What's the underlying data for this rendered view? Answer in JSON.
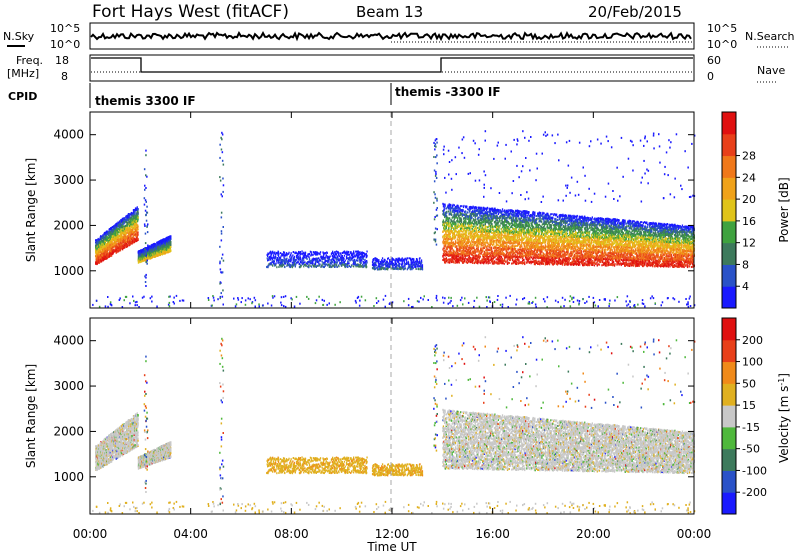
{
  "header": {
    "title": "Fort Hays West (fitACF)",
    "beam": "Beam 13",
    "date": "20/Feb/2015"
  },
  "summary_panel": {
    "nsky_label": "N.Sky",
    "nsky_ticks": [
      "10^5",
      "10^0"
    ],
    "nsearch_label": "N.Search",
    "nsearch_ticks": [
      "10^5",
      "10^0"
    ],
    "freq_label": "Freq.",
    "freq_unit": "[MHz]",
    "freq_ticks": [
      "18",
      "8"
    ],
    "nave_label": "Nave",
    "nave_ticks": [
      "60",
      "0"
    ],
    "cpid_label": "CPID",
    "cpid_segments": [
      {
        "label": "themis 3300 IF",
        "start_h": 0,
        "end_h": 12
      },
      {
        "label": "themis -3300 IF",
        "start_h": 12,
        "end_h": 24
      }
    ]
  },
  "axes": {
    "ylabel": "Slant Range [km]",
    "yticks": [
      "1000",
      "2000",
      "3000",
      "4000"
    ],
    "xlabel": "Time UT",
    "xticks": [
      "00:00",
      "04:00",
      "08:00",
      "12:00",
      "16:00",
      "20:00",
      "00:00"
    ]
  },
  "colorbars": {
    "power": {
      "label": "Power [dB]",
      "ticks": [
        "4",
        "8",
        "12",
        "16",
        "20",
        "24",
        "28"
      ],
      "colors": [
        "#1a1aff",
        "#2a52c8",
        "#3d7a5c",
        "#3fa23f",
        "#e0c41a",
        "#f0a21a",
        "#f0781a",
        "#e8401a",
        "#e01010"
      ]
    },
    "velocity": {
      "label": "Velocity [m s",
      "label_exp": "-1",
      "label_close": "]",
      "ticks": [
        "200",
        "100",
        "50",
        "15",
        "-15",
        "-50",
        "-100",
        "-200"
      ],
      "colors": [
        "#1a1aff",
        "#2a52c8",
        "#3d7a5c",
        "#4fb83c",
        "#c8c8c8",
        "#e0b020",
        "#f08a1a",
        "#e8401a",
        "#e01010"
      ]
    }
  },
  "chart_data": {
    "type": "heatmap",
    "x_range_hours": [
      0,
      24
    ],
    "y_range_km": [
      180,
      4500
    ],
    "power_blobs": [
      {
        "t0": 0.2,
        "t1": 1.9,
        "r_lo0": 1150,
        "r_hi0": 1700,
        "r_lo1": 1700,
        "r_hi1": 2450,
        "power": "high"
      },
      {
        "t0": 1.9,
        "t1": 3.2,
        "r_lo0": 1200,
        "r_hi0": 1450,
        "r_lo1": 1450,
        "r_hi1": 1800,
        "power": "medium"
      },
      {
        "t0": 7.0,
        "t1": 11.0,
        "r_lo0": 1100,
        "r_hi0": 1450,
        "r_lo1": 1100,
        "r_hi1": 1450,
        "power": "low"
      },
      {
        "t0": 11.2,
        "t1": 13.2,
        "r_lo0": 1050,
        "r_hi0": 1300,
        "r_lo1": 1050,
        "r_hi1": 1300,
        "power": "low"
      },
      {
        "t0": 14.0,
        "t1": 24.0,
        "r_lo0": 1200,
        "r_hi0": 2500,
        "r_lo1": 1100,
        "r_hi1": 2000,
        "power": "high"
      }
    ]
  }
}
